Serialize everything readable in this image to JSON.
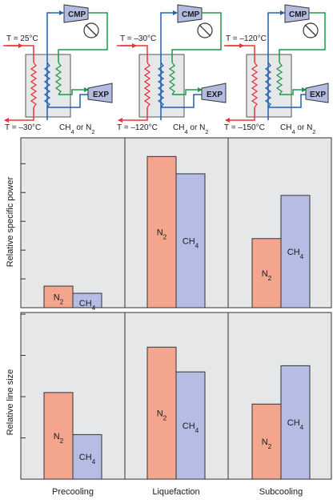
{
  "schematics": [
    {
      "top_temp": "T = 25°C",
      "bottom_temp": "T = –30°C",
      "cmp": "CMP",
      "exp": "EXP",
      "refrigerant": "CH4 or N2"
    },
    {
      "top_temp": "T = –30°C",
      "bottom_temp": "T = –120°C",
      "cmp": "CMP",
      "exp": "EXP",
      "refrigerant": "CH4 or N2"
    },
    {
      "top_temp": "T = –120°C",
      "bottom_temp": "T = –150°C",
      "cmp": "CMP",
      "exp": "EXP",
      "refrigerant": "CH4 or N2"
    }
  ],
  "colors": {
    "n2_bar": "#f4a58e",
    "ch4_bar": "#b5bde5",
    "chart_bg": "#e6e7e8",
    "hx_box": "#e6e7e8",
    "hot_stream": "#e8333a",
    "cold_stream": "#2060b0",
    "refrig_return": "#1e9a48",
    "equipment": "#b3bce0"
  },
  "chart_data": [
    {
      "type": "bar",
      "ylabel": "Relative specific power",
      "categories": [
        "Precooling",
        "Liquefaction",
        "Subcooling"
      ],
      "series": [
        {
          "name": "N2",
          "values": [
            0.75,
            5.25,
            2.4
          ]
        },
        {
          "name": "CH4",
          "values": [
            0.5,
            4.65,
            3.9
          ]
        }
      ],
      "ylim": [
        0,
        5.9
      ],
      "grid": true
    },
    {
      "type": "bar",
      "ylabel": "Relative line size",
      "categories": [
        "Precooling",
        "Liquefaction",
        "Subcooling"
      ],
      "series": [
        {
          "name": "N2",
          "values": [
            2.1,
            3.2,
            1.82
          ]
        },
        {
          "name": "CH4",
          "values": [
            1.08,
            2.6,
            2.75
          ]
        }
      ],
      "ylim": [
        0,
        4.04
      ],
      "grid": true
    }
  ],
  "xlabels": [
    "Precooling",
    "Liquefaction",
    "Subcooling"
  ]
}
